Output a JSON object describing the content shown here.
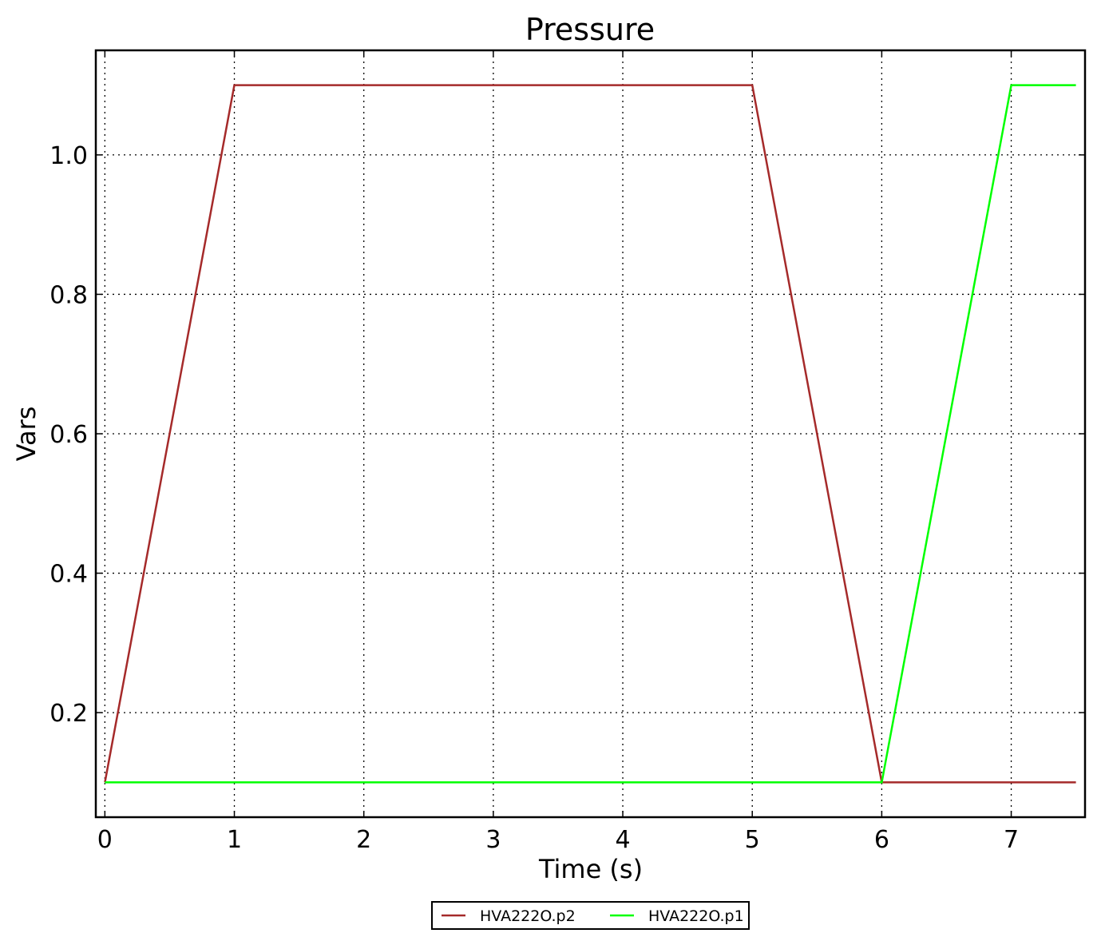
{
  "chart_data": {
    "type": "line",
    "title": "Pressure",
    "xlabel": "Time (s)",
    "ylabel": "Vars",
    "xlim": [
      -0.07,
      7.57
    ],
    "ylim": [
      0.05,
      1.15
    ],
    "grid": true,
    "legend_position": "bottom-center",
    "x_ticks": [
      0,
      1,
      2,
      3,
      4,
      5,
      6,
      7
    ],
    "x_tick_labels": [
      "0",
      "1",
      "2",
      "3",
      "4",
      "5",
      "6",
      "7"
    ],
    "y_ticks": [
      0.2,
      0.4,
      0.6,
      0.8,
      1.0
    ],
    "y_tick_labels": [
      "0.2",
      "0.4",
      "0.6",
      "0.8",
      "1.0"
    ],
    "series": [
      {
        "name": "HVA222O.p2",
        "color": "#a52a2a",
        "x": [
          0,
          1,
          5,
          6,
          7.5
        ],
        "y": [
          0.1,
          1.1,
          1.1,
          0.1,
          0.1
        ]
      },
      {
        "name": "HVA222O.p1",
        "color": "#00ff00",
        "x": [
          0,
          6,
          7,
          7.5
        ],
        "y": [
          0.1,
          0.1,
          1.1,
          1.1
        ]
      }
    ]
  }
}
